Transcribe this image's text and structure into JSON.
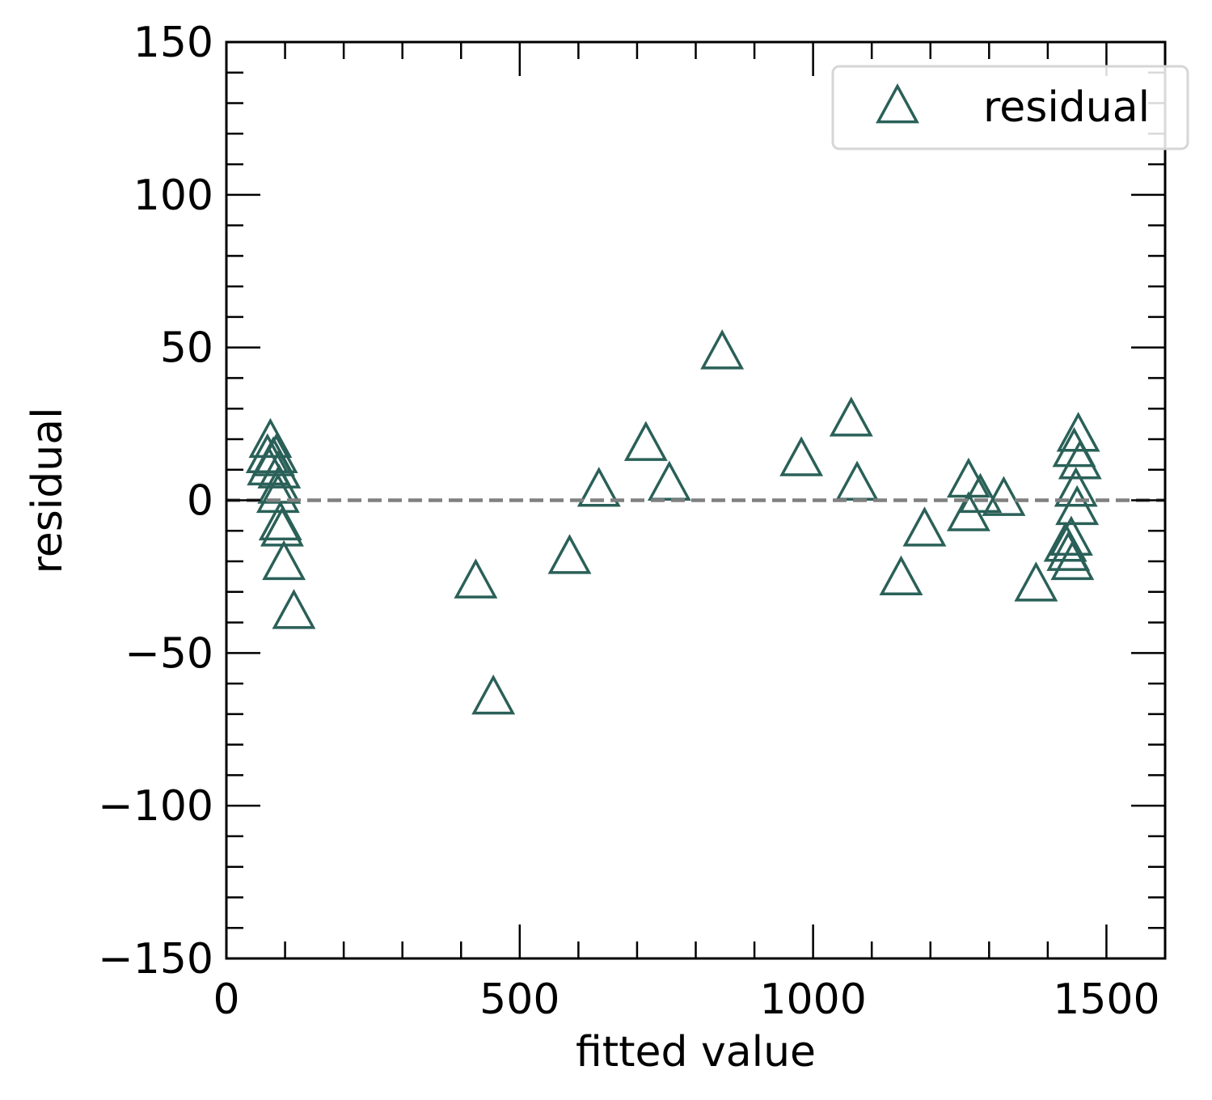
{
  "chart_data": {
    "type": "scatter",
    "xlabel": "fitted value",
    "ylabel": "residual",
    "xlim": [
      0,
      1600
    ],
    "ylim": [
      -150,
      150
    ],
    "x_ticks": [
      0,
      500,
      1000,
      1500
    ],
    "x_tick_labels": [
      "0",
      "500",
      "1000",
      "1500"
    ],
    "y_ticks": [
      -150,
      -100,
      -50,
      0,
      50,
      100,
      150
    ],
    "y_tick_labels": [
      "−150",
      "−100",
      "−50",
      "0",
      "50",
      "100",
      "150"
    ],
    "grid": false,
    "legend_position": "top-right",
    "reference_line": {
      "y": 0,
      "style": "dashed",
      "color": "#808080"
    },
    "series": [
      {
        "name": "residual",
        "marker": "open-triangle",
        "color": "#2a6058",
        "points": [
          {
            "x": 70,
            "y": 14
          },
          {
            "x": 72,
            "y": 10
          },
          {
            "x": 75,
            "y": 19
          },
          {
            "x": 80,
            "y": 13
          },
          {
            "x": 85,
            "y": 14
          },
          {
            "x": 90,
            "y": 9
          },
          {
            "x": 90,
            "y": 4
          },
          {
            "x": 88,
            "y": 1
          },
          {
            "x": 92,
            "y": -8
          },
          {
            "x": 95,
            "y": -10
          },
          {
            "x": 98,
            "y": -21
          },
          {
            "x": 115,
            "y": -37
          },
          {
            "x": 425,
            "y": -27
          },
          {
            "x": 455,
            "y": -65
          },
          {
            "x": 585,
            "y": -19
          },
          {
            "x": 635,
            "y": 3
          },
          {
            "x": 715,
            "y": 18
          },
          {
            "x": 755,
            "y": 5
          },
          {
            "x": 845,
            "y": 48
          },
          {
            "x": 980,
            "y": 13
          },
          {
            "x": 1065,
            "y": 26
          },
          {
            "x": 1075,
            "y": 5
          },
          {
            "x": 1150,
            "y": -26
          },
          {
            "x": 1190,
            "y": -10
          },
          {
            "x": 1265,
            "y": 6
          },
          {
            "x": 1265,
            "y": -5
          },
          {
            "x": 1285,
            "y": 1
          },
          {
            "x": 1325,
            "y": 0
          },
          {
            "x": 1380,
            "y": -28
          },
          {
            "x": 1430,
            "y": -15
          },
          {
            "x": 1435,
            "y": -18
          },
          {
            "x": 1440,
            "y": -13
          },
          {
            "x": 1442,
            "y": -21
          },
          {
            "x": 1445,
            "y": 16
          },
          {
            "x": 1448,
            "y": 3
          },
          {
            "x": 1450,
            "y": -3
          },
          {
            "x": 1452,
            "y": 21
          },
          {
            "x": 1455,
            "y": 12
          }
        ]
      }
    ]
  }
}
